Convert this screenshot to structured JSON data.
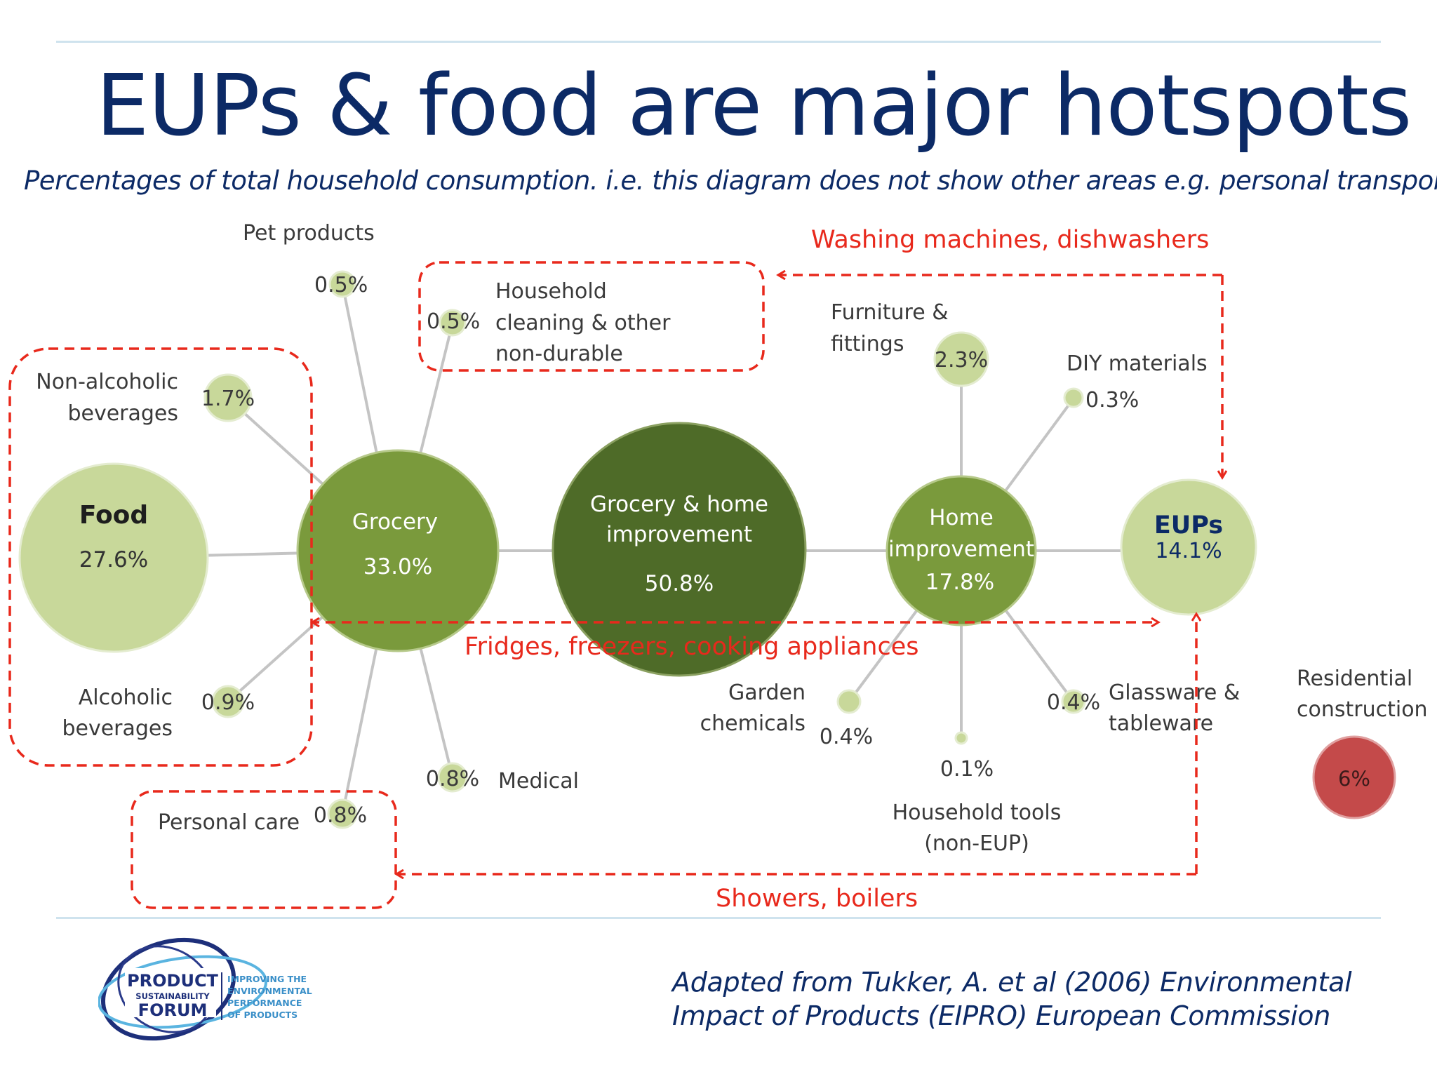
{
  "title": "EUPs & food are major hotspots",
  "subtitle": "Percentages of total household consumption. i.e. this diagram does not show other areas e.g. personal transport",
  "colors": {
    "title": "#0c2a66",
    "red": "#e8291c",
    "light_green": "#c8d89a",
    "mid_green": "#7a9a3c",
    "dark_green": "#4e6b28",
    "residential": "#c44a4a"
  },
  "nodes": {
    "food": {
      "name": "Food",
      "value": "27.6%"
    },
    "grocery": {
      "name": "Grocery",
      "value": "33.0%"
    },
    "grocery_home": {
      "name_line1": "Grocery & home",
      "name_line2": "improvement",
      "value": "50.8%"
    },
    "home_improvement": {
      "name_line1": "Home",
      "name_line2": "improvement",
      "value": "17.8%"
    },
    "eups": {
      "name": "EUPs",
      "value": "14.1%"
    },
    "residential": {
      "name_line1": "Residential",
      "name_line2": "construction",
      "value": "6%"
    }
  },
  "leaves": {
    "pet_products": {
      "label": "Pet products",
      "value": "0.5%"
    },
    "household_cleaning": {
      "label_line1": "Household",
      "label_line2": "cleaning & other",
      "label_line3": "non-durable",
      "value": "0.5%"
    },
    "non_alcoholic": {
      "label_line1": "Non-alcoholic",
      "label_line2": "beverages",
      "value": "1.7%"
    },
    "alcoholic": {
      "label_line1": "Alcoholic",
      "label_line2": "beverages",
      "value": "0.9%"
    },
    "personal_care": {
      "label": "Personal care",
      "value": "0.8%"
    },
    "medical": {
      "label": "Medical",
      "value": "0.8%"
    },
    "furniture": {
      "label_line1": "Furniture &",
      "label_line2": "fittings",
      "value": "2.3%"
    },
    "diy": {
      "label": "DIY materials",
      "value": "0.3%"
    },
    "garden": {
      "label_line1": "Garden",
      "label_line2": "chemicals",
      "value": "0.4%"
    },
    "household_tools": {
      "label_line1": "Household tools",
      "label_line2": "(non-EUP)",
      "value": "0.1%"
    },
    "glassware": {
      "label_line1": "Glassware &",
      "label_line2": "tableware",
      "value": "0.4%"
    }
  },
  "annotations": {
    "washing": "Washing machines, dishwashers",
    "fridges": "Fridges, freezers, cooking appliances",
    "showers": "Showers, boilers"
  },
  "source": {
    "line1": "Adapted from Tukker, A. et al (2006) Environmental",
    "line2": "Impact of Products (EIPRO) European Commission"
  },
  "logo": {
    "word1": "PRODUCT",
    "word2": "SUSTAINABILITY",
    "word3": "FORUM",
    "tag1": "IMPROVING THE",
    "tag2": "ENVIRONMENTAL",
    "tag3": "PERFORMANCE",
    "tag4": "OF PRODUCTS"
  }
}
